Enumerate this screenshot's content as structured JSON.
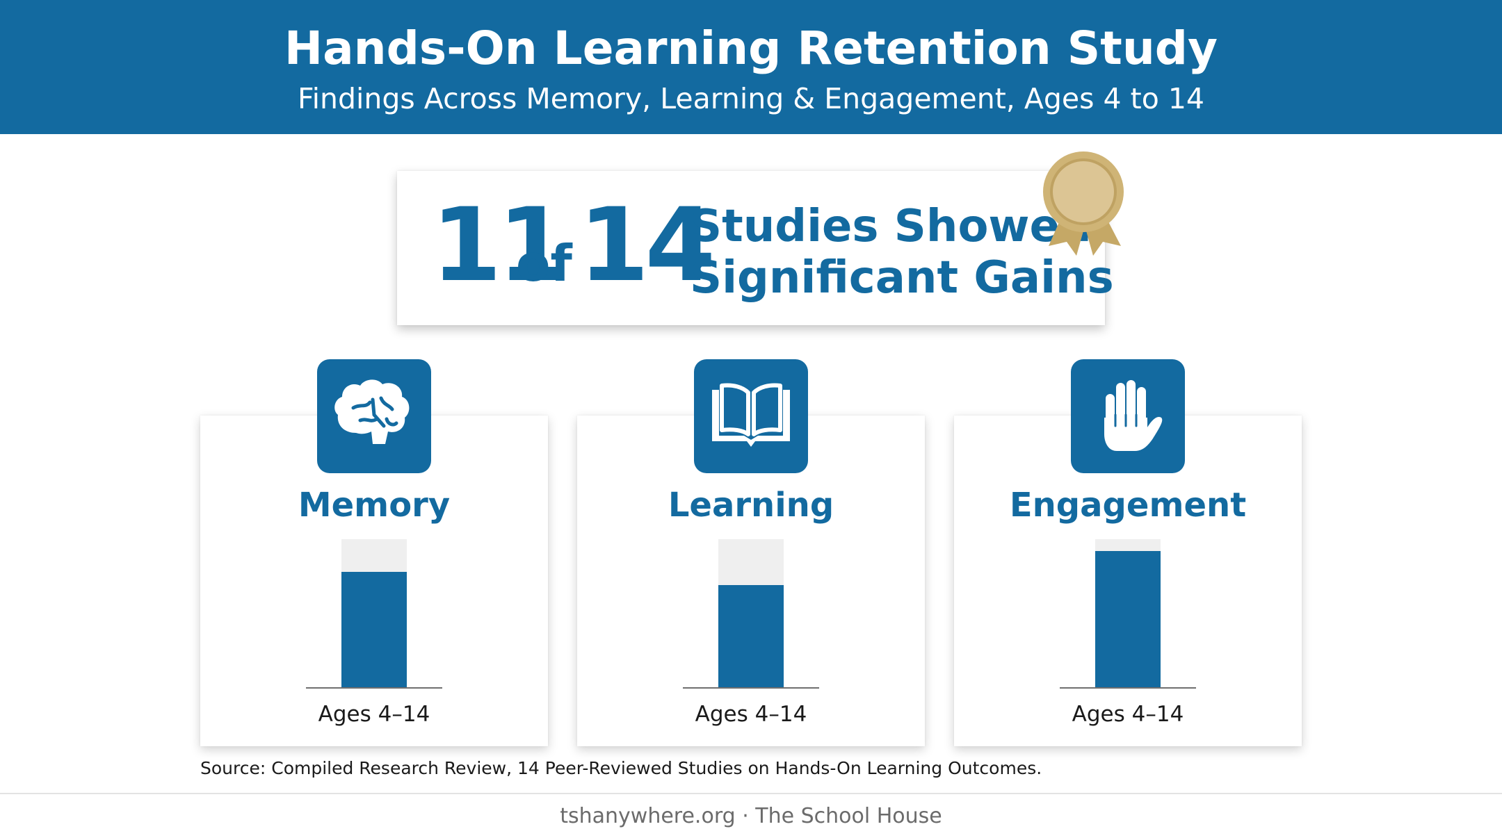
{
  "header": {
    "title": "Hands-On Learning Retention Study",
    "subtitle": "Findings Across Memory, Learning & Engagement, Ages 4 to 14"
  },
  "highlight": {
    "count": "11",
    "of_word": "of",
    "total": "14",
    "line1": "Studies Showed",
    "line2": "Significant Gains",
    "badge_icon": "award-medal-icon"
  },
  "colors": {
    "primary": "#136aa0",
    "track": "#efefef",
    "medal": "#cfb476"
  },
  "chart_data": {
    "type": "bar",
    "categories": [
      "Memory",
      "Learning",
      "Engagement"
    ],
    "icons": [
      "brain-icon",
      "open-book-icon",
      "raised-hand-icon"
    ],
    "values": [
      0.78,
      0.69,
      0.92
    ],
    "value_unit": "fraction of bar filled",
    "ylim": [
      0,
      1
    ],
    "tick_labels": [
      "Ages 4–14",
      "Ages 4–14",
      "Ages 4–14"
    ],
    "grid": false,
    "legend": "none"
  },
  "source": "Source: Compiled Research Review, 14 Peer-Reviewed Studies on Hands-On Learning Outcomes.",
  "footer": "tshanywhere.org · The School House"
}
